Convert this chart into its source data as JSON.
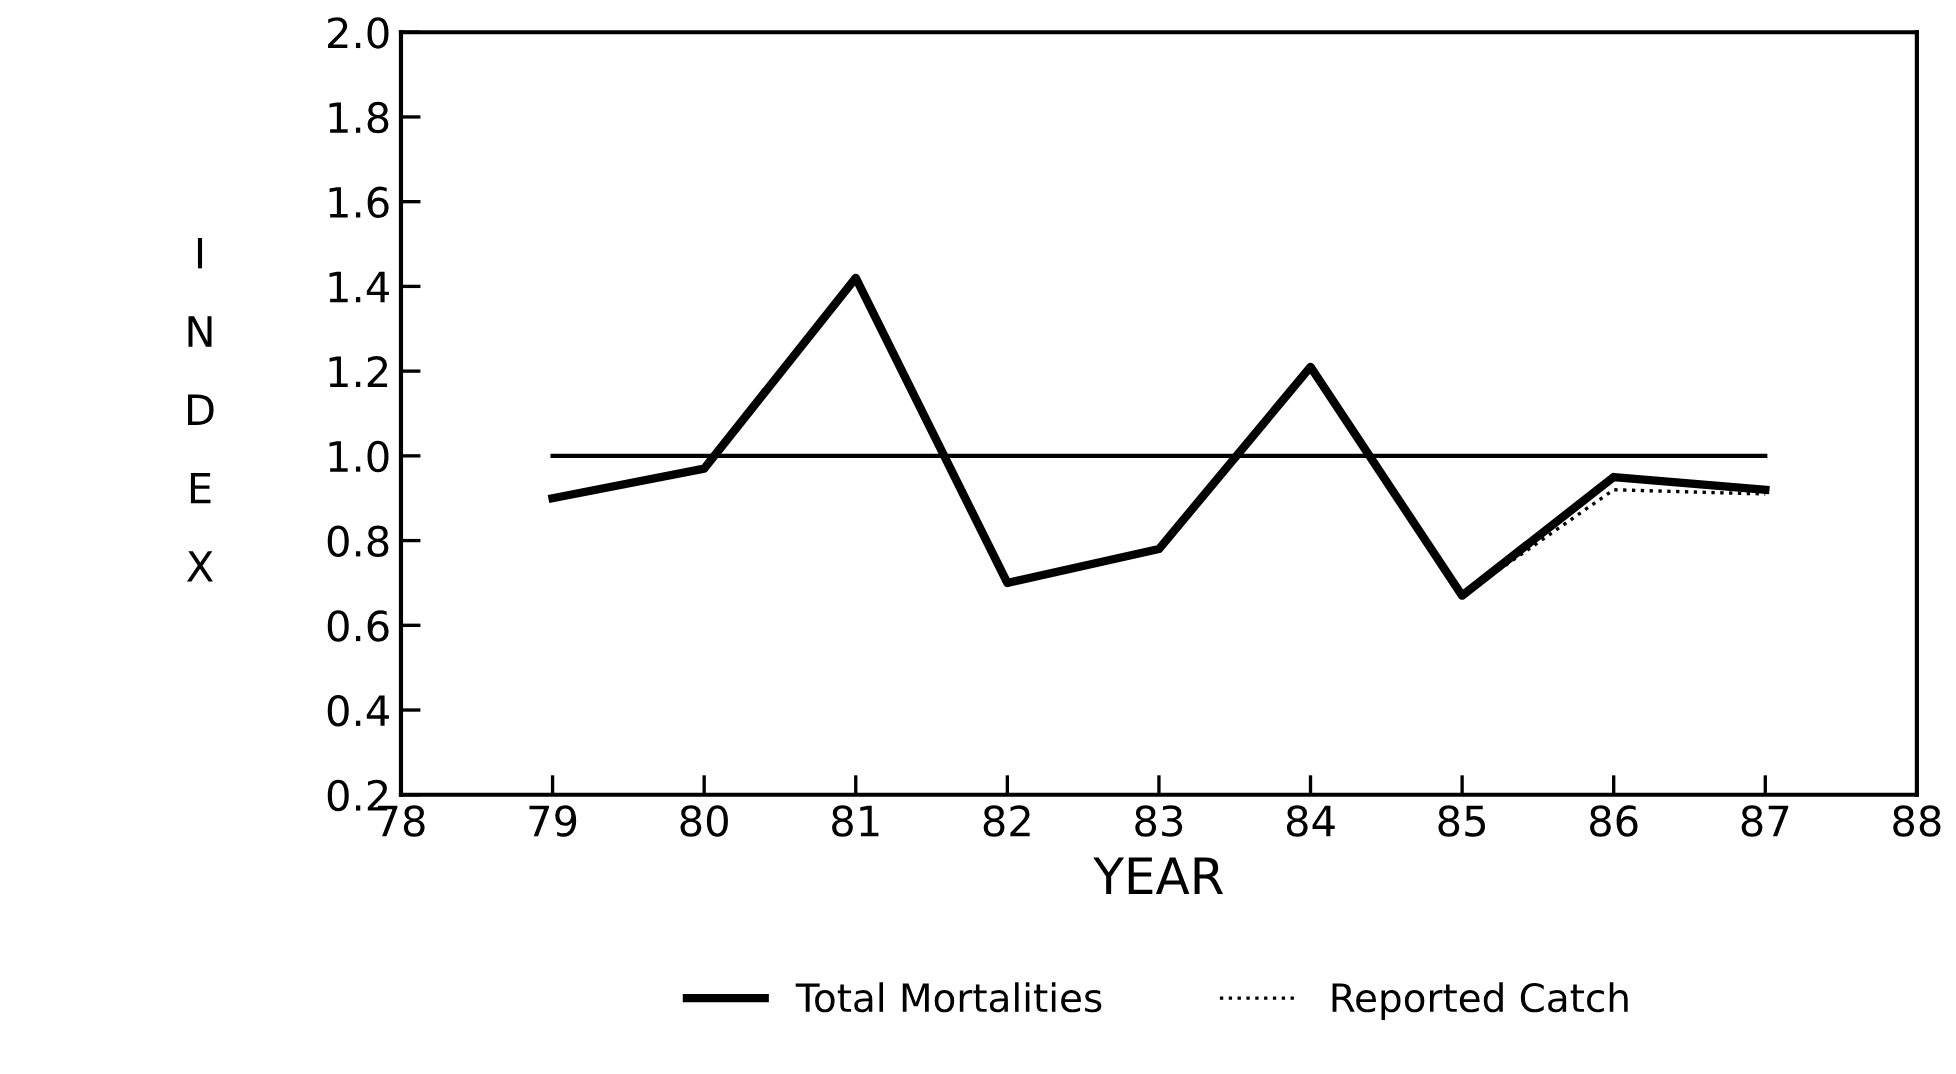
{
  "chart_data": {
    "type": "line",
    "xlabel": "YEAR",
    "ylabel": "INDEX",
    "x": [
      79,
      80,
      81,
      82,
      83,
      84,
      85,
      86,
      87
    ],
    "series": [
      {
        "name": "Total Mortalities",
        "color": "#000000",
        "line_style": "solid",
        "values": [
          0.9,
          0.97,
          1.42,
          0.7,
          0.78,
          1.21,
          0.67,
          0.95,
          0.92
        ]
      },
      {
        "name": "Reported Catch",
        "color": "#000000",
        "line_style": "dotted",
        "values": [
          null,
          null,
          null,
          null,
          null,
          null,
          0.67,
          0.92,
          0.91
        ]
      }
    ],
    "ref_lines": [
      {
        "axis": "y",
        "value": 1.0,
        "color": "#000000",
        "line_style": "solid"
      }
    ],
    "xlim": [
      78,
      88
    ],
    "xticks": [
      78,
      79,
      80,
      81,
      82,
      83,
      84,
      85,
      86,
      87,
      88
    ],
    "ylim": [
      0.2,
      2.0
    ],
    "yticks": [
      {
        "value": 0.2,
        "label": "0.2"
      },
      {
        "value": 0.4,
        "label": "0.4"
      },
      {
        "value": 0.6,
        "label": "0.6"
      },
      {
        "value": 0.8,
        "label": "0.8"
      },
      {
        "value": 1.0,
        "label": "1.0"
      },
      {
        "value": 1.2,
        "label": "1.2"
      },
      {
        "value": 1.4,
        "label": "1.4"
      },
      {
        "value": 1.6,
        "label": "1.6"
      },
      {
        "value": 1.8,
        "label": "1.8"
      },
      {
        "value": 2.0,
        "label": "2.0"
      }
    ],
    "grid": false,
    "legend": "bottom",
    "marker": "none"
  }
}
